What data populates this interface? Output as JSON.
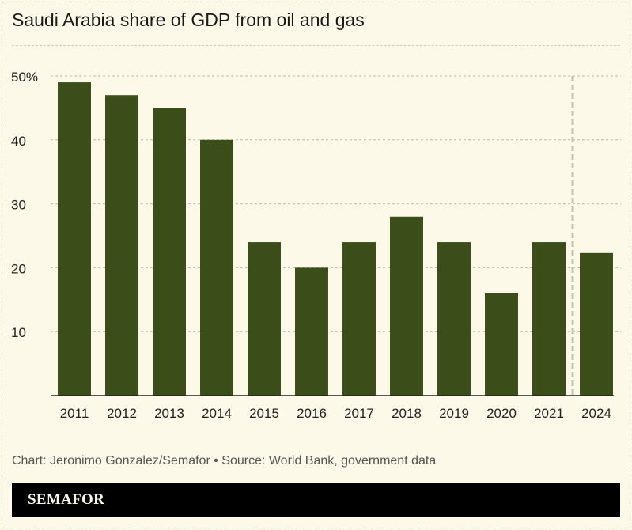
{
  "chart_data": {
    "type": "bar",
    "title": "Saudi Arabia share of GDP from oil and gas",
    "categories": [
      "2011",
      "2012",
      "2013",
      "2014",
      "2015",
      "2016",
      "2017",
      "2018",
      "2019",
      "2020",
      "2021",
      "2024"
    ],
    "values": [
      49,
      47,
      45,
      40,
      24,
      20,
      24,
      28,
      24,
      16,
      24,
      22.3
    ],
    "ylim": [
      0,
      50
    ],
    "yticks": [
      10,
      20,
      30,
      40,
      50
    ],
    "ytick_labels": [
      "10",
      "20",
      "30",
      "40",
      "50%"
    ],
    "grid": true,
    "bar_color": "#3b4e1a",
    "break_between": [
      "2021",
      "2024"
    ]
  },
  "footer": {
    "credit": "Chart: Jeronimo Gonzalez/Semafor • Source: World Bank, government data",
    "logo": "SEMAFOR"
  }
}
